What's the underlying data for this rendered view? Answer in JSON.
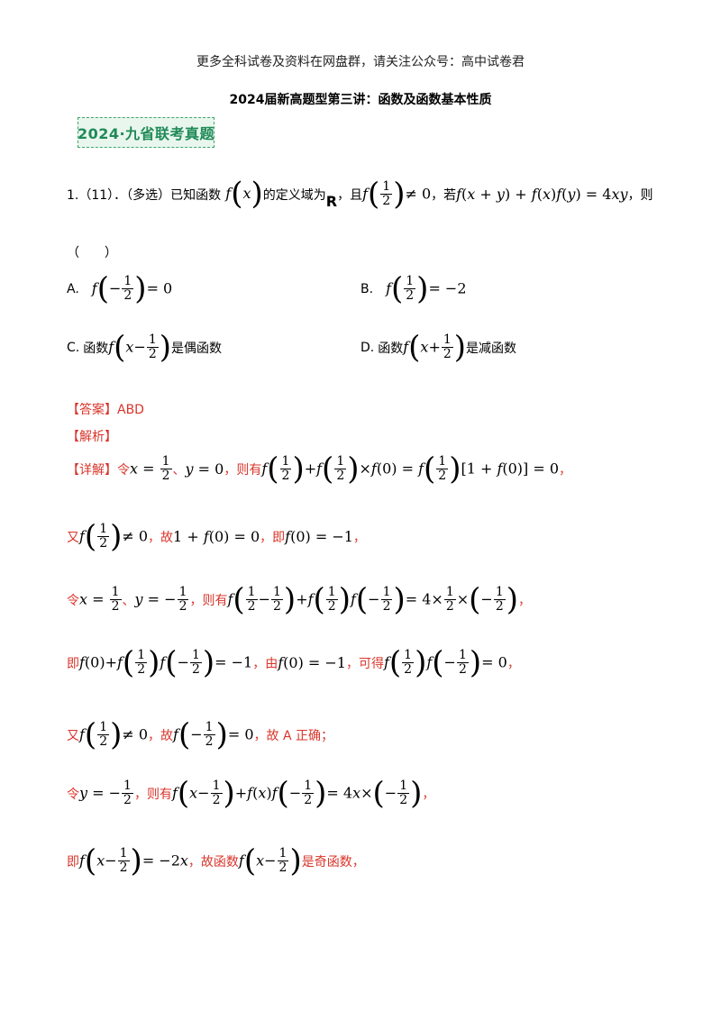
{
  "header": {
    "notice": "更多全科试卷及资料在网盘群，请关注公众号：高中试卷君",
    "title": "2024届新高题型第三讲：函数及函数基本性质"
  },
  "badge": {
    "label": "2024·九省联考真题"
  },
  "question": {
    "intro_prefix": "1.（11）．（多选）已知函数",
    "intro_mid1": "的定义域为",
    "domain_symbol": "R",
    "intro_mid2": "，且",
    "intro_mid3": "，若",
    "intro_end": "，则",
    "blank": "（　　）",
    "options": {
      "A_label": "A.",
      "B_label": "B.",
      "C_label": "C.",
      "C_text1": "函数",
      "C_text2": "是偶函数",
      "D_label": "D.",
      "D_text1": "函数",
      "D_text2": "是减函数"
    }
  },
  "answer": {
    "label": "【答案】",
    "value": "ABD"
  },
  "analysis": {
    "label": "【解析】"
  },
  "detail": {
    "label": "【详解】",
    "l1_a": "令",
    "l1_b": "、",
    "l1_c": "，则有",
    "l2_a": "又",
    "l2_b": "，故",
    "l2_c": "，即",
    "l2_d": "，",
    "l3_a": "令",
    "l3_b": "、",
    "l3_c": "，则有",
    "l4_a": "即",
    "l4_b": "，由",
    "l4_c": "，可得",
    "l5_a": "又",
    "l5_b": "，故",
    "l5_c": "，故 A 正确；",
    "l6_a": "令",
    "l6_b": "，则有",
    "l7_a": "即",
    "l7_b": "，故函数",
    "l7_c": "是奇函数，",
    "comma": "，"
  }
}
